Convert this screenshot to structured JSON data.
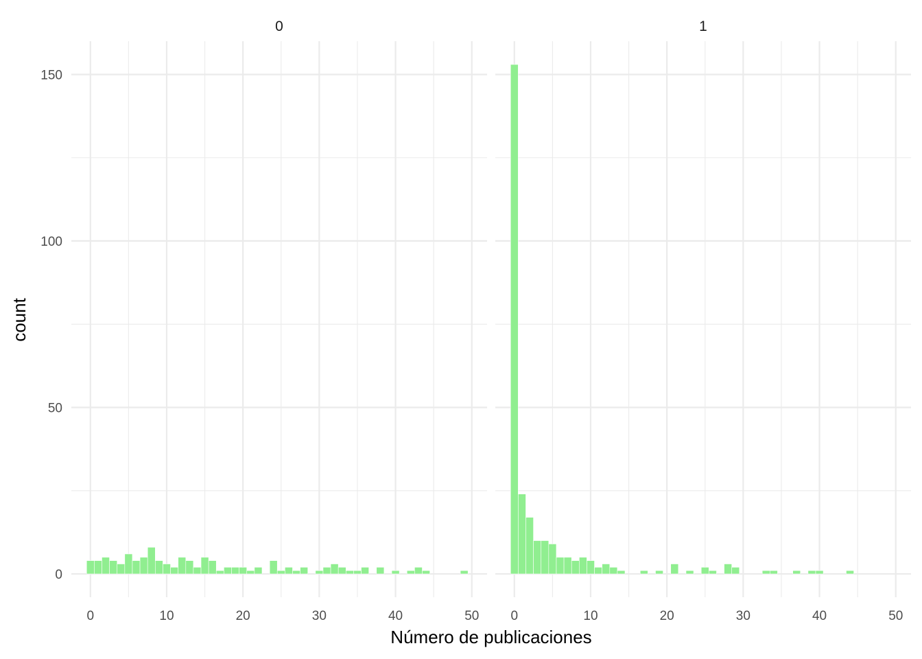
{
  "chart_data": {
    "type": "bar",
    "title": "",
    "xlabel": "Número de publicaciones",
    "ylabel": "count",
    "xlim": [
      -2.5,
      52
    ],
    "ylim": [
      -7,
      160
    ],
    "x_ticks": [
      0,
      10,
      20,
      30,
      40,
      50
    ],
    "x_minor_ticks": [
      5,
      15,
      25,
      35,
      45
    ],
    "y_ticks": [
      0,
      50,
      100,
      150
    ],
    "y_minor_ticks": [
      25,
      75,
      125
    ],
    "grid": true,
    "bin_width": 1,
    "colors": {
      "bar": "#90ee90",
      "grid": "#ebebeb"
    },
    "facets": [
      {
        "label": "0",
        "series": [
          {
            "x": 0,
            "y": 4
          },
          {
            "x": 1,
            "y": 4
          },
          {
            "x": 2,
            "y": 5
          },
          {
            "x": 3,
            "y": 4
          },
          {
            "x": 4,
            "y": 3
          },
          {
            "x": 5,
            "y": 6
          },
          {
            "x": 6,
            "y": 4
          },
          {
            "x": 7,
            "y": 5
          },
          {
            "x": 8,
            "y": 8
          },
          {
            "x": 9,
            "y": 4
          },
          {
            "x": 10,
            "y": 3
          },
          {
            "x": 11,
            "y": 2
          },
          {
            "x": 12,
            "y": 5
          },
          {
            "x": 13,
            "y": 4
          },
          {
            "x": 14,
            "y": 2
          },
          {
            "x": 15,
            "y": 5
          },
          {
            "x": 16,
            "y": 4
          },
          {
            "x": 17,
            "y": 1
          },
          {
            "x": 18,
            "y": 2
          },
          {
            "x": 19,
            "y": 2
          },
          {
            "x": 20,
            "y": 2
          },
          {
            "x": 21,
            "y": 1
          },
          {
            "x": 22,
            "y": 2
          },
          {
            "x": 24,
            "y": 4
          },
          {
            "x": 25,
            "y": 1
          },
          {
            "x": 26,
            "y": 2
          },
          {
            "x": 27,
            "y": 1
          },
          {
            "x": 28,
            "y": 2
          },
          {
            "x": 30,
            "y": 1
          },
          {
            "x": 31,
            "y": 2
          },
          {
            "x": 32,
            "y": 3
          },
          {
            "x": 33,
            "y": 2
          },
          {
            "x": 34,
            "y": 1
          },
          {
            "x": 35,
            "y": 1
          },
          {
            "x": 36,
            "y": 2
          },
          {
            "x": 38,
            "y": 2
          },
          {
            "x": 40,
            "y": 1
          },
          {
            "x": 42,
            "y": 1
          },
          {
            "x": 43,
            "y": 2
          },
          {
            "x": 44,
            "y": 1
          },
          {
            "x": 49,
            "y": 1
          }
        ]
      },
      {
        "label": "1",
        "series": [
          {
            "x": 0,
            "y": 153
          },
          {
            "x": 1,
            "y": 24
          },
          {
            "x": 2,
            "y": 17
          },
          {
            "x": 3,
            "y": 10
          },
          {
            "x": 4,
            "y": 10
          },
          {
            "x": 5,
            "y": 9
          },
          {
            "x": 6,
            "y": 5
          },
          {
            "x": 7,
            "y": 5
          },
          {
            "x": 8,
            "y": 4
          },
          {
            "x": 9,
            "y": 5
          },
          {
            "x": 10,
            "y": 4
          },
          {
            "x": 11,
            "y": 2
          },
          {
            "x": 12,
            "y": 3
          },
          {
            "x": 13,
            "y": 2
          },
          {
            "x": 14,
            "y": 1
          },
          {
            "x": 17,
            "y": 1
          },
          {
            "x": 19,
            "y": 1
          },
          {
            "x": 21,
            "y": 3
          },
          {
            "x": 23,
            "y": 1
          },
          {
            "x": 25,
            "y": 2
          },
          {
            "x": 26,
            "y": 1
          },
          {
            "x": 28,
            "y": 3
          },
          {
            "x": 29,
            "y": 2
          },
          {
            "x": 33,
            "y": 1
          },
          {
            "x": 34,
            "y": 1
          },
          {
            "x": 37,
            "y": 1
          },
          {
            "x": 39,
            "y": 1
          },
          {
            "x": 40,
            "y": 1
          },
          {
            "x": 44,
            "y": 1
          }
        ]
      }
    ]
  }
}
